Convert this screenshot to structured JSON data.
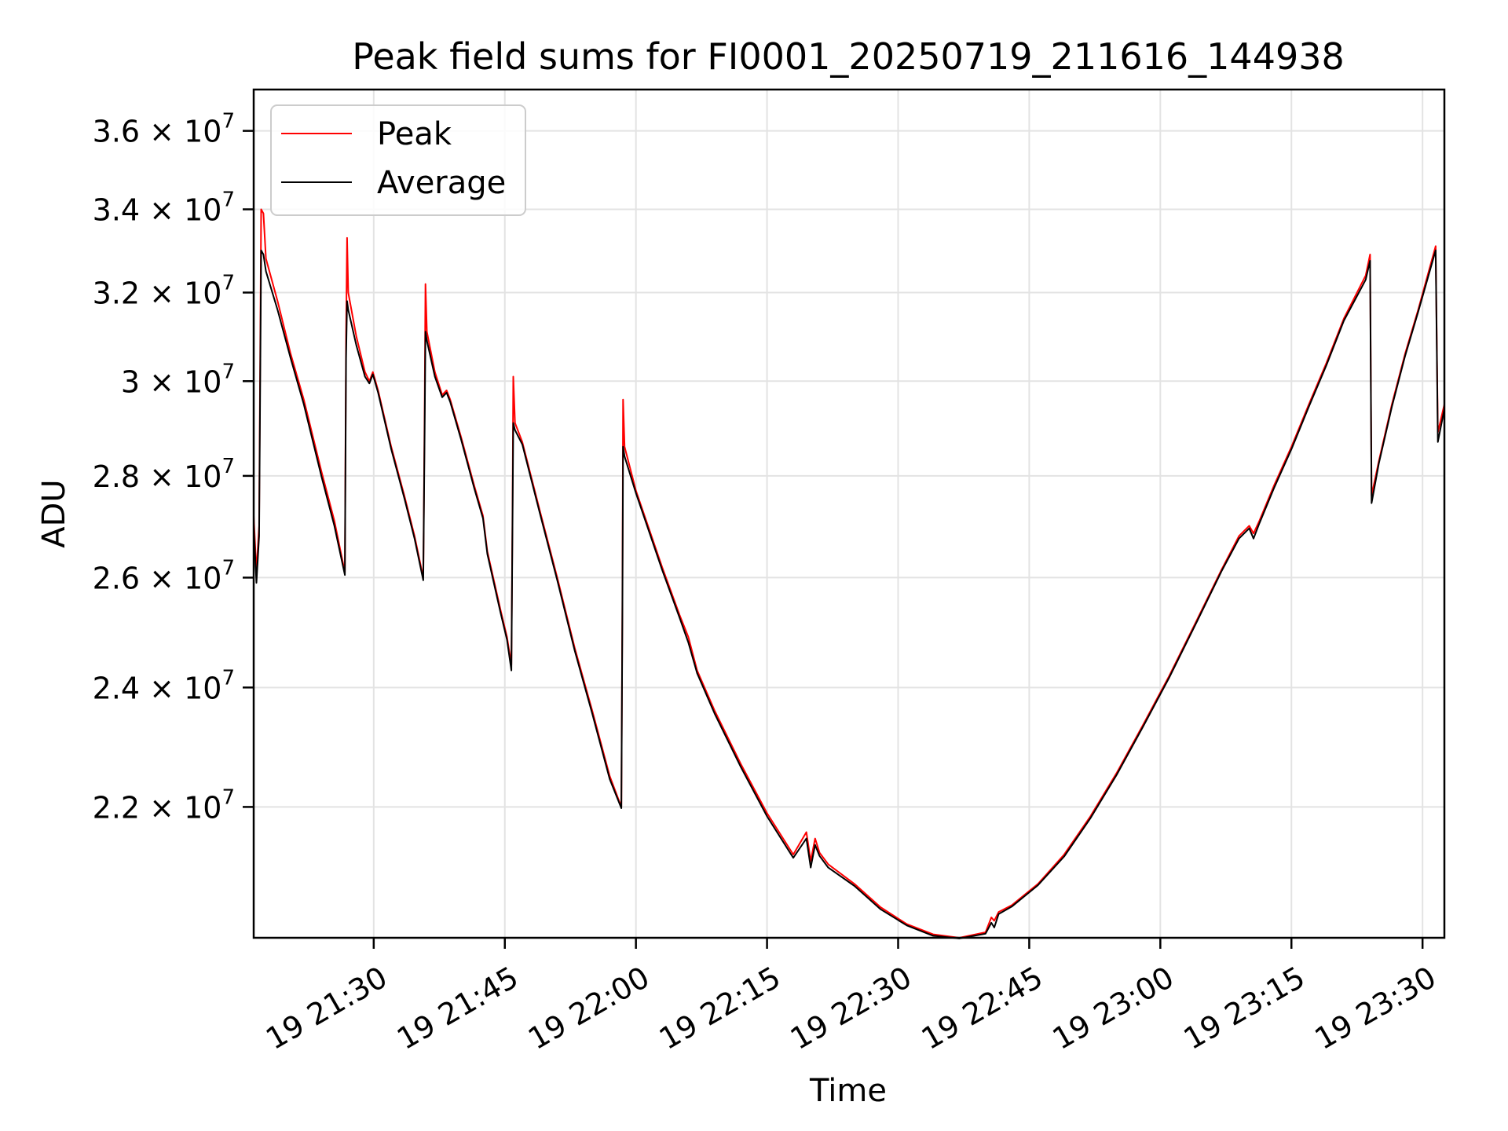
{
  "chart_data": {
    "type": "line",
    "title": "Peak field sums for FI0001_20250719_211616_144938",
    "xlabel": "Time",
    "ylabel": "ADU",
    "yscale": "log",
    "grid": true,
    "legend_placement": "top-left",
    "xlim": [
      "2025-07-19 21:16:16",
      "2025-07-19 23:32:30"
    ],
    "ylim": [
      20000000,
      37100000
    ],
    "x_ticks": [
      {
        "value": "2025-07-19 21:30",
        "label": "19 21:30"
      },
      {
        "value": "2025-07-19 21:45",
        "label": "19 21:45"
      },
      {
        "value": "2025-07-19 22:00",
        "label": "19 22:00"
      },
      {
        "value": "2025-07-19 22:15",
        "label": "19 22:15"
      },
      {
        "value": "2025-07-19 22:30",
        "label": "19 22:30"
      },
      {
        "value": "2025-07-19 22:45",
        "label": "19 22:45"
      },
      {
        "value": "2025-07-19 23:00",
        "label": "19 23:00"
      },
      {
        "value": "2025-07-19 23:15",
        "label": "19 23:15"
      },
      {
        "value": "2025-07-19 23:30",
        "label": "19 23:30"
      }
    ],
    "y_ticks": [
      {
        "value": 22000000,
        "mantissa": "2.2",
        "exp": "7"
      },
      {
        "value": 24000000,
        "mantissa": "2.4",
        "exp": "7"
      },
      {
        "value": 26000000,
        "mantissa": "2.6",
        "exp": "7"
      },
      {
        "value": 28000000,
        "mantissa": "2.8",
        "exp": "7"
      },
      {
        "value": 30000000,
        "mantissa": "3",
        "exp": "7"
      },
      {
        "value": 32000000,
        "mantissa": "3.2",
        "exp": "7"
      },
      {
        "value": 34000000,
        "mantissa": "3.4",
        "exp": "7"
      },
      {
        "value": 36000000,
        "mantissa": "3.6",
        "exp": "7"
      }
    ],
    "series": [
      {
        "name": "Peak",
        "color": "#ff0000",
        "points": [
          [
            "2025-07-19 21:16:16",
            27200000
          ],
          [
            "2025-07-19 21:16:35",
            26100000
          ],
          [
            "2025-07-19 21:16:53",
            27000000
          ],
          [
            "2025-07-19 21:17:07",
            34000000
          ],
          [
            "2025-07-19 21:17:23",
            33900000
          ],
          [
            "2025-07-19 21:17:40",
            32800000
          ],
          [
            "2025-07-19 21:19:00",
            31800000
          ],
          [
            "2025-07-19 21:20:30",
            30600000
          ],
          [
            "2025-07-19 21:22:00",
            29600000
          ],
          [
            "2025-07-19 21:24:00",
            28100000
          ],
          [
            "2025-07-19 21:25:30",
            27100000
          ],
          [
            "2025-07-19 21:26:42",
            26100000
          ],
          [
            "2025-07-19 21:26:50",
            31000000
          ],
          [
            "2025-07-19 21:26:57",
            33300000
          ],
          [
            "2025-07-19 21:27:05",
            32000000
          ],
          [
            "2025-07-19 21:28:00",
            31000000
          ],
          [
            "2025-07-19 21:29:00",
            30200000
          ],
          [
            "2025-07-19 21:29:30",
            30000000
          ],
          [
            "2025-07-19 21:29:54",
            30200000
          ],
          [
            "2025-07-19 21:30:30",
            29800000
          ],
          [
            "2025-07-19 21:32:00",
            28600000
          ],
          [
            "2025-07-19 21:33:30",
            27600000
          ],
          [
            "2025-07-19 21:34:40",
            26800000
          ],
          [
            "2025-07-19 21:35:40",
            26000000
          ],
          [
            "2025-07-19 21:35:50",
            29500000
          ],
          [
            "2025-07-19 21:35:55",
            32200000
          ],
          [
            "2025-07-19 21:36:05",
            31100000
          ],
          [
            "2025-07-19 21:37:00",
            30200000
          ],
          [
            "2025-07-19 21:37:50",
            29700000
          ],
          [
            "2025-07-19 21:38:20",
            29800000
          ],
          [
            "2025-07-19 21:38:45",
            29600000
          ],
          [
            "2025-07-19 21:40:00",
            28800000
          ],
          [
            "2025-07-19 21:41:30",
            27800000
          ],
          [
            "2025-07-19 21:42:30",
            27200000
          ],
          [
            "2025-07-19 21:43:00",
            26500000
          ],
          [
            "2025-07-19 21:44:30",
            25400000
          ],
          [
            "2025-07-19 21:45:15",
            24900000
          ],
          [
            "2025-07-19 21:45:45",
            24400000
          ],
          [
            "2025-07-19 21:45:53",
            27500000
          ],
          [
            "2025-07-19 21:45:58",
            30100000
          ],
          [
            "2025-07-19 21:46:10",
            29100000
          ],
          [
            "2025-07-19 21:47:00",
            28700000
          ],
          [
            "2025-07-19 21:49:00",
            27300000
          ],
          [
            "2025-07-19 21:51:00",
            26000000
          ],
          [
            "2025-07-19 21:53:00",
            24700000
          ],
          [
            "2025-07-19 21:55:00",
            23600000
          ],
          [
            "2025-07-19 21:57:00",
            22500000
          ],
          [
            "2025-07-19 21:58:20",
            22000000
          ],
          [
            "2025-07-19 21:58:27",
            25500000
          ],
          [
            "2025-07-19 21:58:32",
            29600000
          ],
          [
            "2025-07-19 21:58:42",
            28600000
          ],
          [
            "2025-07-19 22:00:00",
            27700000
          ],
          [
            "2025-07-19 22:03:00",
            26200000
          ],
          [
            "2025-07-19 22:05:00",
            25300000
          ],
          [
            "2025-07-19 22:06:00",
            24900000
          ],
          [
            "2025-07-19 22:07:00",
            24300000
          ],
          [
            "2025-07-19 22:09:00",
            23600000
          ],
          [
            "2025-07-19 22:12:00",
            22700000
          ],
          [
            "2025-07-19 22:15:00",
            21900000
          ],
          [
            "2025-07-19 22:18:00",
            21250000
          ],
          [
            "2025-07-19 22:19:30",
            21600000
          ],
          [
            "2025-07-19 22:20:00",
            21150000
          ],
          [
            "2025-07-19 22:20:30",
            21500000
          ],
          [
            "2025-07-19 22:21:00",
            21280000
          ],
          [
            "2025-07-19 22:22:00",
            21100000
          ],
          [
            "2025-07-19 22:25:00",
            20800000
          ],
          [
            "2025-07-19 22:28:00",
            20450000
          ],
          [
            "2025-07-19 22:31:00",
            20200000
          ],
          [
            "2025-07-19 22:34:00",
            20050000
          ],
          [
            "2025-07-19 22:37:00",
            20000000
          ],
          [
            "2025-07-19 22:40:00",
            20080000
          ],
          [
            "2025-07-19 22:40:40",
            20300000
          ],
          [
            "2025-07-19 22:41:00",
            20250000
          ],
          [
            "2025-07-19 22:41:30",
            20380000
          ],
          [
            "2025-07-19 22:43:00",
            20480000
          ],
          [
            "2025-07-19 22:46:00",
            20800000
          ],
          [
            "2025-07-19 22:49:00",
            21250000
          ],
          [
            "2025-07-19 22:52:00",
            21850000
          ],
          [
            "2025-07-19 22:55:00",
            22550000
          ],
          [
            "2025-07-19 22:58:00",
            23350000
          ],
          [
            "2025-07-19 23:01:00",
            24200000
          ],
          [
            "2025-07-19 23:04:00",
            25150000
          ],
          [
            "2025-07-19 23:07:00",
            26150000
          ],
          [
            "2025-07-19 23:09:00",
            26800000
          ],
          [
            "2025-07-19 23:10:10",
            27000000
          ],
          [
            "2025-07-19 23:10:40",
            26850000
          ],
          [
            "2025-07-19 23:11:20",
            27100000
          ],
          [
            "2025-07-19 23:13:00",
            27800000
          ],
          [
            "2025-07-19 23:15:00",
            28600000
          ],
          [
            "2025-07-19 23:17:00",
            29500000
          ],
          [
            "2025-07-19 23:19:00",
            30400000
          ],
          [
            "2025-07-19 23:21:00",
            31400000
          ],
          [
            "2025-07-19 23:23:30",
            32400000
          ],
          [
            "2025-07-19 23:24:00",
            32900000
          ],
          [
            "2025-07-19 23:24:10",
            27600000
          ],
          [
            "2025-07-19 23:25:00",
            28300000
          ],
          [
            "2025-07-19 23:26:30",
            29500000
          ],
          [
            "2025-07-19 23:28:00",
            30600000
          ],
          [
            "2025-07-19 23:29:30",
            31600000
          ],
          [
            "2025-07-19 23:31:30",
            33100000
          ],
          [
            "2025-07-19 23:31:45",
            28900000
          ],
          [
            "2025-07-19 23:32:30",
            29500000
          ]
        ]
      },
      {
        "name": "Average",
        "color": "#000000",
        "points": [
          [
            "2025-07-19 21:16:16",
            27000000
          ],
          [
            "2025-07-19 21:16:35",
            25900000
          ],
          [
            "2025-07-19 21:16:53",
            26800000
          ],
          [
            "2025-07-19 21:17:07",
            33000000
          ],
          [
            "2025-07-19 21:17:23",
            32900000
          ],
          [
            "2025-07-19 21:17:40",
            32500000
          ],
          [
            "2025-07-19 21:19:00",
            31600000
          ],
          [
            "2025-07-19 21:20:30",
            30500000
          ],
          [
            "2025-07-19 21:22:00",
            29500000
          ],
          [
            "2025-07-19 21:24:00",
            28000000
          ],
          [
            "2025-07-19 21:25:30",
            27000000
          ],
          [
            "2025-07-19 21:26:42",
            26050000
          ],
          [
            "2025-07-19 21:26:50",
            30500000
          ],
          [
            "2025-07-19 21:26:57",
            31800000
          ],
          [
            "2025-07-19 21:27:05",
            31600000
          ],
          [
            "2025-07-19 21:28:00",
            30800000
          ],
          [
            "2025-07-19 21:29:00",
            30100000
          ],
          [
            "2025-07-19 21:29:30",
            29950000
          ],
          [
            "2025-07-19 21:29:54",
            30150000
          ],
          [
            "2025-07-19 21:30:30",
            29750000
          ],
          [
            "2025-07-19 21:32:00",
            28550000
          ],
          [
            "2025-07-19 21:33:30",
            27550000
          ],
          [
            "2025-07-19 21:34:40",
            26750000
          ],
          [
            "2025-07-19 21:35:40",
            25950000
          ],
          [
            "2025-07-19 21:35:50",
            29000000
          ],
          [
            "2025-07-19 21:35:55",
            31100000
          ],
          [
            "2025-07-19 21:36:05",
            30900000
          ],
          [
            "2025-07-19 21:37:00",
            30100000
          ],
          [
            "2025-07-19 21:37:50",
            29650000
          ],
          [
            "2025-07-19 21:38:20",
            29750000
          ],
          [
            "2025-07-19 21:38:45",
            29550000
          ],
          [
            "2025-07-19 21:40:00",
            28750000
          ],
          [
            "2025-07-19 21:41:30",
            27750000
          ],
          [
            "2025-07-19 21:42:30",
            27150000
          ],
          [
            "2025-07-19 21:43:00",
            26450000
          ],
          [
            "2025-07-19 21:44:30",
            25350000
          ],
          [
            "2025-07-19 21:45:15",
            24850000
          ],
          [
            "2025-07-19 21:45:45",
            24300000
          ],
          [
            "2025-07-19 21:45:53",
            27200000
          ],
          [
            "2025-07-19 21:45:58",
            29100000
          ],
          [
            "2025-07-19 21:46:10",
            28950000
          ],
          [
            "2025-07-19 21:47:00",
            28650000
          ],
          [
            "2025-07-19 21:49:00",
            27250000
          ],
          [
            "2025-07-19 21:51:00",
            25950000
          ],
          [
            "2025-07-19 21:53:00",
            24650000
          ],
          [
            "2025-07-19 21:55:00",
            23550000
          ],
          [
            "2025-07-19 21:57:00",
            22450000
          ],
          [
            "2025-07-19 21:58:20",
            21980000
          ],
          [
            "2025-07-19 21:58:27",
            25200000
          ],
          [
            "2025-07-19 21:58:32",
            28600000
          ],
          [
            "2025-07-19 21:58:42",
            28400000
          ],
          [
            "2025-07-19 22:00:00",
            27650000
          ],
          [
            "2025-07-19 22:03:00",
            26150000
          ],
          [
            "2025-07-19 22:05:00",
            25250000
          ],
          [
            "2025-07-19 22:06:00",
            24800000
          ],
          [
            "2025-07-19 22:07:00",
            24250000
          ],
          [
            "2025-07-19 22:09:00",
            23550000
          ],
          [
            "2025-07-19 22:12:00",
            22650000
          ],
          [
            "2025-07-19 22:15:00",
            21850000
          ],
          [
            "2025-07-19 22:18:00",
            21200000
          ],
          [
            "2025-07-19 22:19:30",
            21500000
          ],
          [
            "2025-07-19 22:20:00",
            21050000
          ],
          [
            "2025-07-19 22:20:30",
            21400000
          ],
          [
            "2025-07-19 22:21:00",
            21230000
          ],
          [
            "2025-07-19 22:22:00",
            21050000
          ],
          [
            "2025-07-19 22:25:00",
            20770000
          ],
          [
            "2025-07-19 22:28:00",
            20420000
          ],
          [
            "2025-07-19 22:31:00",
            20180000
          ],
          [
            "2025-07-19 22:34:00",
            20030000
          ],
          [
            "2025-07-19 22:37:00",
            19990000
          ],
          [
            "2025-07-19 22:40:00",
            20060000
          ],
          [
            "2025-07-19 22:40:40",
            20220000
          ],
          [
            "2025-07-19 22:41:00",
            20150000
          ],
          [
            "2025-07-19 22:41:30",
            20350000
          ],
          [
            "2025-07-19 22:43:00",
            20460000
          ],
          [
            "2025-07-19 22:46:00",
            20780000
          ],
          [
            "2025-07-19 22:49:00",
            21220000
          ],
          [
            "2025-07-19 22:52:00",
            21820000
          ],
          [
            "2025-07-19 22:55:00",
            22520000
          ],
          [
            "2025-07-19 22:58:00",
            23320000
          ],
          [
            "2025-07-19 23:01:00",
            24170000
          ],
          [
            "2025-07-19 23:04:00",
            25120000
          ],
          [
            "2025-07-19 23:07:00",
            26120000
          ],
          [
            "2025-07-19 23:09:00",
            26750000
          ],
          [
            "2025-07-19 23:10:10",
            26950000
          ],
          [
            "2025-07-19 23:10:40",
            26750000
          ],
          [
            "2025-07-19 23:11:20",
            27050000
          ],
          [
            "2025-07-19 23:13:00",
            27750000
          ],
          [
            "2025-07-19 23:15:00",
            28550000
          ],
          [
            "2025-07-19 23:17:00",
            29450000
          ],
          [
            "2025-07-19 23:19:00",
            30350000
          ],
          [
            "2025-07-19 23:21:00",
            31350000
          ],
          [
            "2025-07-19 23:23:30",
            32300000
          ],
          [
            "2025-07-19 23:24:00",
            32750000
          ],
          [
            "2025-07-19 23:24:10",
            27450000
          ],
          [
            "2025-07-19 23:25:00",
            28250000
          ],
          [
            "2025-07-19 23:26:30",
            29450000
          ],
          [
            "2025-07-19 23:28:00",
            30550000
          ],
          [
            "2025-07-19 23:29:30",
            31550000
          ],
          [
            "2025-07-19 23:31:30",
            33000000
          ],
          [
            "2025-07-19 23:31:45",
            28700000
          ],
          [
            "2025-07-19 23:32:30",
            29400000
          ]
        ]
      }
    ]
  }
}
